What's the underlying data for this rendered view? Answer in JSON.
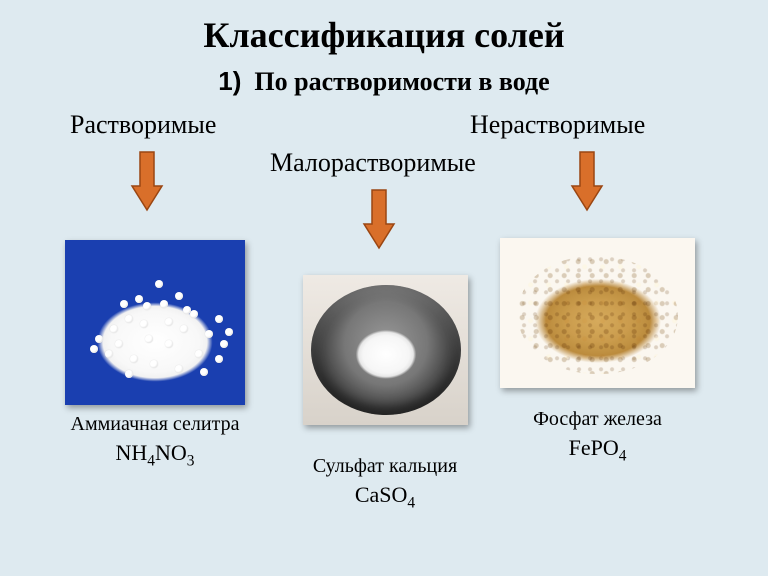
{
  "title": "Классификация солей",
  "subtitle_number": "1)",
  "subtitle_text": "По растворимости в воде",
  "categories": {
    "soluble": "Растворимые",
    "slightly": "Малорастворимые",
    "insoluble": "Нерастворимые"
  },
  "arrow": {
    "fill": "#d96f2a",
    "stroke": "#9a4612",
    "width": 34,
    "height": 58
  },
  "items": {
    "ammonium_nitrate": {
      "name": "Аммиачная селитра",
      "formula_html": "NH<sub>4</sub>NO<sub>3</sub>",
      "img_bg": "#1a3fb0"
    },
    "calcium_sulfate": {
      "name": "Сульфат кальция",
      "formula_html": "CaSO<sub>4</sub>"
    },
    "iron_phosphate": {
      "name": "Фосфат железа",
      "formula_html": "FePO<sub>4</sub>",
      "powder_color": "#c7994f"
    }
  },
  "background": "#deeaf0"
}
